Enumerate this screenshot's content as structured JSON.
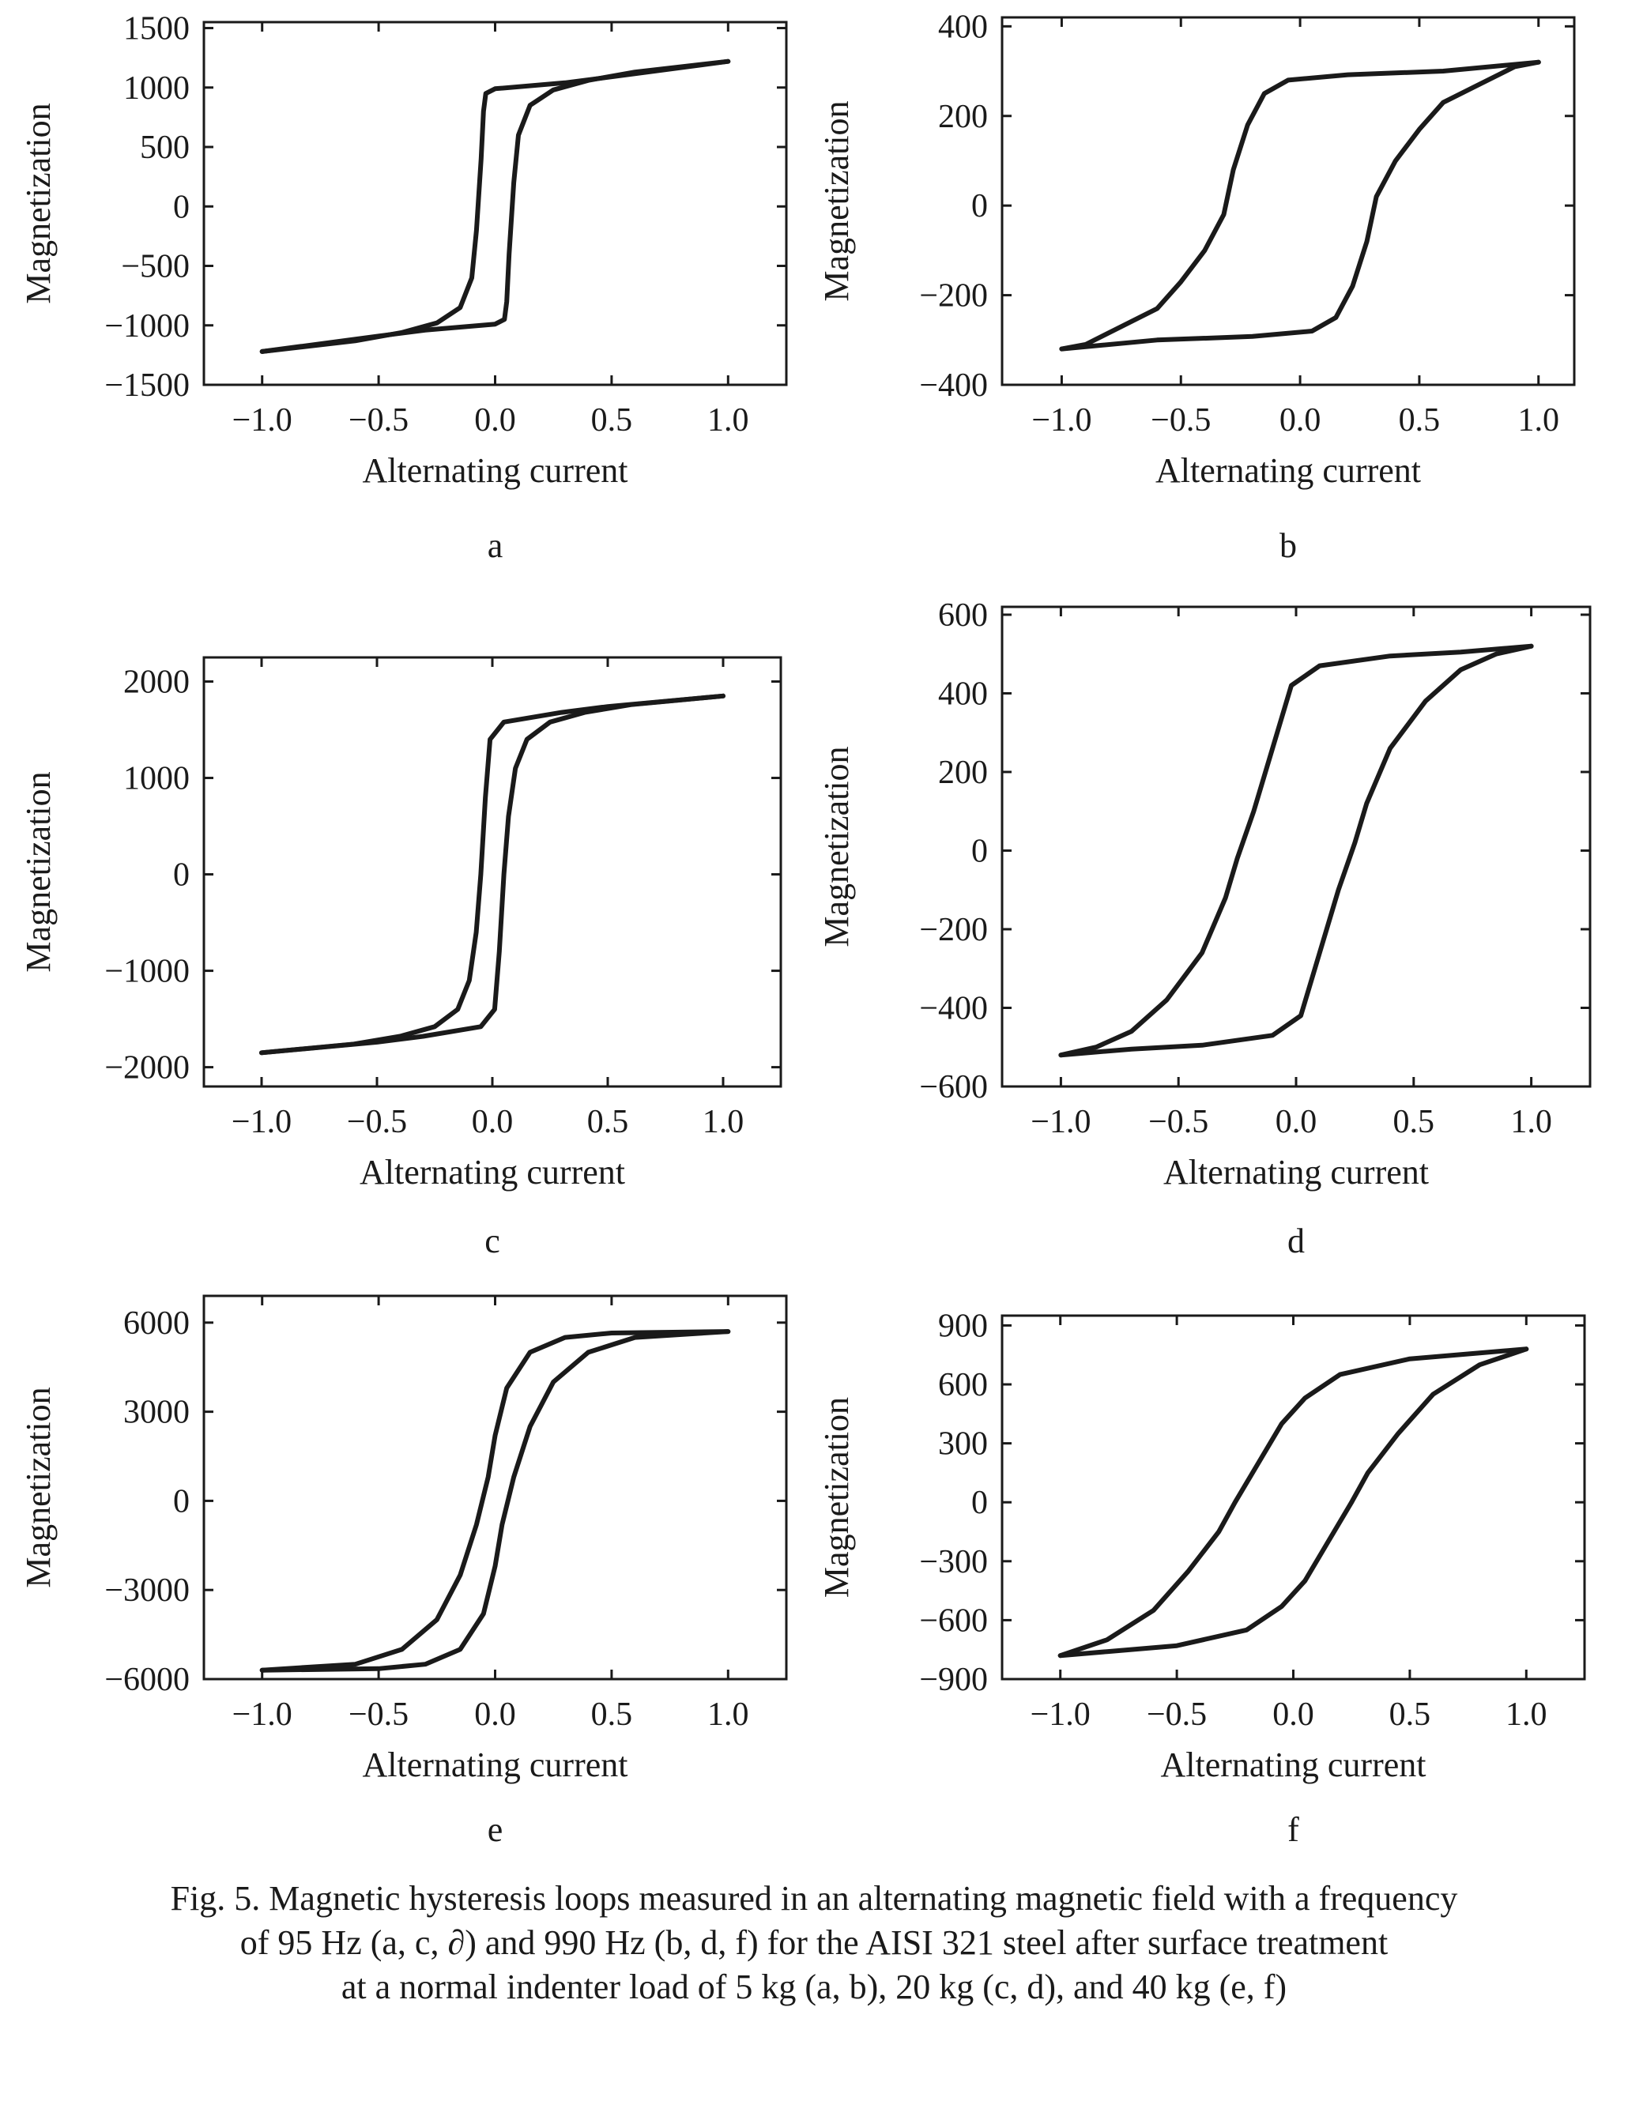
{
  "chart_data": [
    {
      "type": "line",
      "panel_letter": "a",
      "xlabel": "Alternating current",
      "ylabel": "Magnetization",
      "xlim": [
        -1.25,
        1.25
      ],
      "ylim": [
        -1500,
        1550
      ],
      "xticks": [
        -1.0,
        -0.5,
        0.0,
        0.5,
        1.0
      ],
      "xtick_labels": [
        "−1.0",
        "−0.5",
        "0.0",
        "0.5",
        "1.0"
      ],
      "yticks": [
        -1500,
        -1000,
        -500,
        0,
        500,
        1000,
        1500
      ],
      "ytick_labels": [
        "−1500",
        "−1000",
        "−500",
        "0",
        "500",
        "1000",
        "1500"
      ],
      "series": [
        {
          "x": [
            -1.0,
            -0.6,
            -0.4,
            -0.25,
            -0.15,
            -0.1,
            -0.08,
            -0.06,
            -0.05,
            -0.04,
            0.0,
            0.3,
            0.5,
            1.0
          ],
          "y": [
            -1220,
            -1130,
            -1060,
            -980,
            -850,
            -600,
            -200,
            400,
            800,
            950,
            990,
            1040,
            1090,
            1220
          ]
        },
        {
          "x": [
            1.0,
            0.6,
            0.4,
            0.25,
            0.15,
            0.1,
            0.08,
            0.06,
            0.05,
            0.04,
            0.0,
            -0.3,
            -0.5,
            -1.0
          ],
          "y": [
            1220,
            1130,
            1060,
            980,
            850,
            600,
            200,
            -400,
            -800,
            -950,
            -990,
            -1040,
            -1090,
            -1220
          ]
        }
      ]
    },
    {
      "type": "line",
      "panel_letter": "b",
      "xlabel": "Alternating current",
      "ylabel": "Magnetization",
      "xlim": [
        -1.25,
        1.15
      ],
      "ylim": [
        -400,
        420
      ],
      "xticks": [
        -1.0,
        -0.5,
        0.0,
        0.5,
        1.0
      ],
      "xtick_labels": [
        "−1.0",
        "−0.5",
        "0.0",
        "0.5",
        "1.0"
      ],
      "yticks": [
        -400,
        -200,
        0,
        200,
        400
      ],
      "ytick_labels": [
        "−400",
        "−200",
        "0",
        "200",
        "400"
      ],
      "series": [
        {
          "x": [
            -1.0,
            -0.9,
            -0.75,
            -0.6,
            -0.5,
            -0.4,
            -0.32,
            -0.28,
            -0.22,
            -0.15,
            -0.05,
            0.2,
            0.6,
            1.0
          ],
          "y": [
            -320,
            -310,
            -270,
            -230,
            -170,
            -100,
            -20,
            80,
            180,
            250,
            280,
            292,
            300,
            320
          ]
        },
        {
          "x": [
            1.0,
            0.9,
            0.75,
            0.6,
            0.5,
            0.4,
            0.32,
            0.28,
            0.22,
            0.15,
            0.05,
            -0.2,
            -0.6,
            -1.0
          ],
          "y": [
            320,
            310,
            270,
            230,
            170,
            100,
            20,
            -80,
            -180,
            -250,
            -280,
            -292,
            -300,
            -320
          ]
        }
      ]
    },
    {
      "type": "line",
      "panel_letter": "c",
      "xlabel": "Alternating current",
      "ylabel": "Magnetization",
      "xlim": [
        -1.25,
        1.25
      ],
      "ylim": [
        -2200,
        2250
      ],
      "xticks": [
        -1.0,
        -0.5,
        0.0,
        0.5,
        1.0
      ],
      "xtick_labels": [
        "−1.0",
        "−0.5",
        "0.0",
        "0.5",
        "1.0"
      ],
      "yticks": [
        -2000,
        -1000,
        0,
        1000,
        2000
      ],
      "ytick_labels": [
        "−2000",
        "−1000",
        "0",
        "1000",
        "2000"
      ],
      "series": [
        {
          "x": [
            -1.0,
            -0.6,
            -0.4,
            -0.25,
            -0.15,
            -0.1,
            -0.07,
            -0.05,
            -0.03,
            -0.01,
            0.05,
            0.3,
            0.5,
            1.0
          ],
          "y": [
            -1850,
            -1760,
            -1680,
            -1580,
            -1400,
            -1100,
            -600,
            0,
            800,
            1400,
            1580,
            1680,
            1740,
            1850
          ]
        },
        {
          "x": [
            1.0,
            0.6,
            0.4,
            0.25,
            0.15,
            0.1,
            0.07,
            0.05,
            0.03,
            0.01,
            -0.05,
            -0.3,
            -0.5,
            -1.0
          ],
          "y": [
            1850,
            1760,
            1680,
            1580,
            1400,
            1100,
            600,
            0,
            -800,
            -1400,
            -1580,
            -1680,
            -1740,
            -1850
          ]
        }
      ]
    },
    {
      "type": "line",
      "panel_letter": "d",
      "xlabel": "Alternating current",
      "ylabel": "Magnetization",
      "xlim": [
        -1.25,
        1.25
      ],
      "ylim": [
        -600,
        620
      ],
      "xticks": [
        -1.0,
        -0.5,
        0.0,
        0.5,
        1.0
      ],
      "xtick_labels": [
        "−1.0",
        "−0.5",
        "0.0",
        "0.5",
        "1.0"
      ],
      "yticks": [
        -600,
        -400,
        -200,
        0,
        200,
        400,
        600
      ],
      "ytick_labels": [
        "−600",
        "−400",
        "−200",
        "0",
        "200",
        "400",
        "600"
      ],
      "series": [
        {
          "x": [
            -1.0,
            -0.85,
            -0.7,
            -0.55,
            -0.4,
            -0.3,
            -0.25,
            -0.18,
            -0.1,
            -0.02,
            0.1,
            0.4,
            0.7,
            1.0
          ],
          "y": [
            -520,
            -500,
            -460,
            -380,
            -260,
            -120,
            -20,
            100,
            260,
            420,
            470,
            495,
            505,
            520
          ]
        },
        {
          "x": [
            1.0,
            0.85,
            0.7,
            0.55,
            0.4,
            0.3,
            0.25,
            0.18,
            0.1,
            0.02,
            -0.1,
            -0.4,
            -0.7,
            -1.0
          ],
          "y": [
            520,
            500,
            460,
            380,
            260,
            120,
            20,
            -100,
            -260,
            -420,
            -470,
            -495,
            -505,
            -520
          ]
        }
      ]
    },
    {
      "type": "line",
      "panel_letter": "e",
      "xlabel": "Alternating current",
      "ylabel": "Magnetization",
      "xlim": [
        -1.25,
        1.25
      ],
      "ylim": [
        -6000,
        6900
      ],
      "xticks": [
        -1.0,
        -0.5,
        0.0,
        0.5,
        1.0
      ],
      "xtick_labels": [
        "−1.0",
        "−0.5",
        "0.0",
        "0.5",
        "1.0"
      ],
      "yticks": [
        -6000,
        -3000,
        0,
        3000,
        6000
      ],
      "ytick_labels": [
        "−6000",
        "−3000",
        "0",
        "3000",
        "6000"
      ],
      "series": [
        {
          "x": [
            -1.0,
            -0.6,
            -0.4,
            -0.25,
            -0.15,
            -0.08,
            -0.03,
            0.0,
            0.05,
            0.15,
            0.3,
            0.5,
            1.0
          ],
          "y": [
            -5700,
            -5500,
            -5000,
            -4000,
            -2500,
            -800,
            800,
            2200,
            3800,
            5000,
            5500,
            5650,
            5700
          ]
        },
        {
          "x": [
            1.0,
            0.6,
            0.4,
            0.25,
            0.15,
            0.08,
            0.03,
            0.0,
            -0.05,
            -0.15,
            -0.3,
            -0.5,
            -1.0
          ],
          "y": [
            5700,
            5500,
            5000,
            4000,
            2500,
            800,
            -800,
            -2200,
            -3800,
            -5000,
            -5500,
            -5650,
            -5700
          ]
        }
      ]
    },
    {
      "type": "line",
      "panel_letter": "f",
      "xlabel": "Alternating current",
      "ylabel": "Magnetization",
      "xlim": [
        -1.25,
        1.25
      ],
      "ylim": [
        -900,
        950
      ],
      "xticks": [
        -1.0,
        -0.5,
        0.0,
        0.5,
        1.0
      ],
      "xtick_labels": [
        "−1.0",
        "−0.5",
        "0.0",
        "0.5",
        "1.0"
      ],
      "yticks": [
        -900,
        -600,
        -300,
        0,
        300,
        600,
        900
      ],
      "ytick_labels": [
        "−900",
        "−600",
        "−300",
        "0",
        "300",
        "600",
        "900"
      ],
      "series": [
        {
          "x": [
            -1.0,
            -0.8,
            -0.6,
            -0.45,
            -0.32,
            -0.25,
            -0.15,
            -0.05,
            0.05,
            0.2,
            0.5,
            0.8,
            1.0
          ],
          "y": [
            -780,
            -700,
            -550,
            -350,
            -150,
            0,
            200,
            400,
            530,
            650,
            730,
            760,
            780
          ]
        },
        {
          "x": [
            1.0,
            0.8,
            0.6,
            0.45,
            0.32,
            0.25,
            0.15,
            0.05,
            -0.05,
            -0.2,
            -0.5,
            -0.8,
            -1.0
          ],
          "y": [
            780,
            700,
            550,
            350,
            150,
            0,
            -200,
            -400,
            -530,
            -650,
            -730,
            -760,
            -780
          ]
        }
      ]
    }
  ],
  "caption": {
    "line1": "Fig. 5. Magnetic hysteresis loops measured in an alternating magnetic field with a frequency",
    "line2": "of 95 Hz (a, c, ∂) and 990 Hz (b, d, f) for the AISI 321 steel after surface treatment",
    "line3": "at a normal indenter load of 5 kg (a, b), 20 kg (c, d), and 40 kg (e, f)"
  }
}
